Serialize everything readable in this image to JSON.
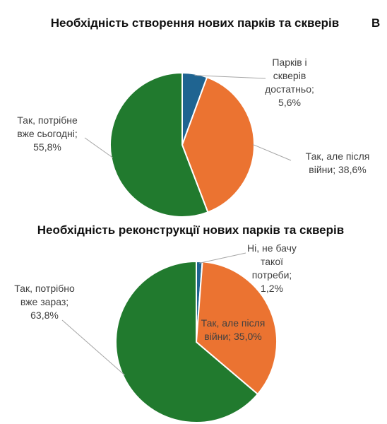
{
  "corner_mark": "В",
  "chart_data": [
    {
      "type": "pie",
      "title": "Необхідність створення нових парків та скверів",
      "slices": [
        {
          "label_lines": [
            "Парків і",
            "скверів",
            "достатньо;",
            "5,6%"
          ],
          "value": 5.6,
          "color": "#1f6491"
        },
        {
          "label_lines": [
            "Так, але після",
            "війни; 38,6%"
          ],
          "value": 38.6,
          "color": "#eb7331"
        },
        {
          "label_lines": [
            "Так, потрібне",
            "вже сьогодні;",
            "55,8%"
          ],
          "value": 55.8,
          "color": "#217a2e"
        }
      ]
    },
    {
      "type": "pie",
      "title": "Необхідність реконструкції нових парків та скверів",
      "slices": [
        {
          "label_lines": [
            "Ні, не бачу",
            "такої",
            "потреби;",
            "1,2%"
          ],
          "value": 1.2,
          "color": "#1f6491"
        },
        {
          "label_lines": [
            "Так, але після",
            "війни; 35,0%"
          ],
          "value": 35.0,
          "color": "#eb7331"
        },
        {
          "label_lines": [
            "Так, потрібно",
            "вже зараз;",
            "63,8%"
          ],
          "value": 63.8,
          "color": "#217a2e"
        }
      ]
    }
  ]
}
